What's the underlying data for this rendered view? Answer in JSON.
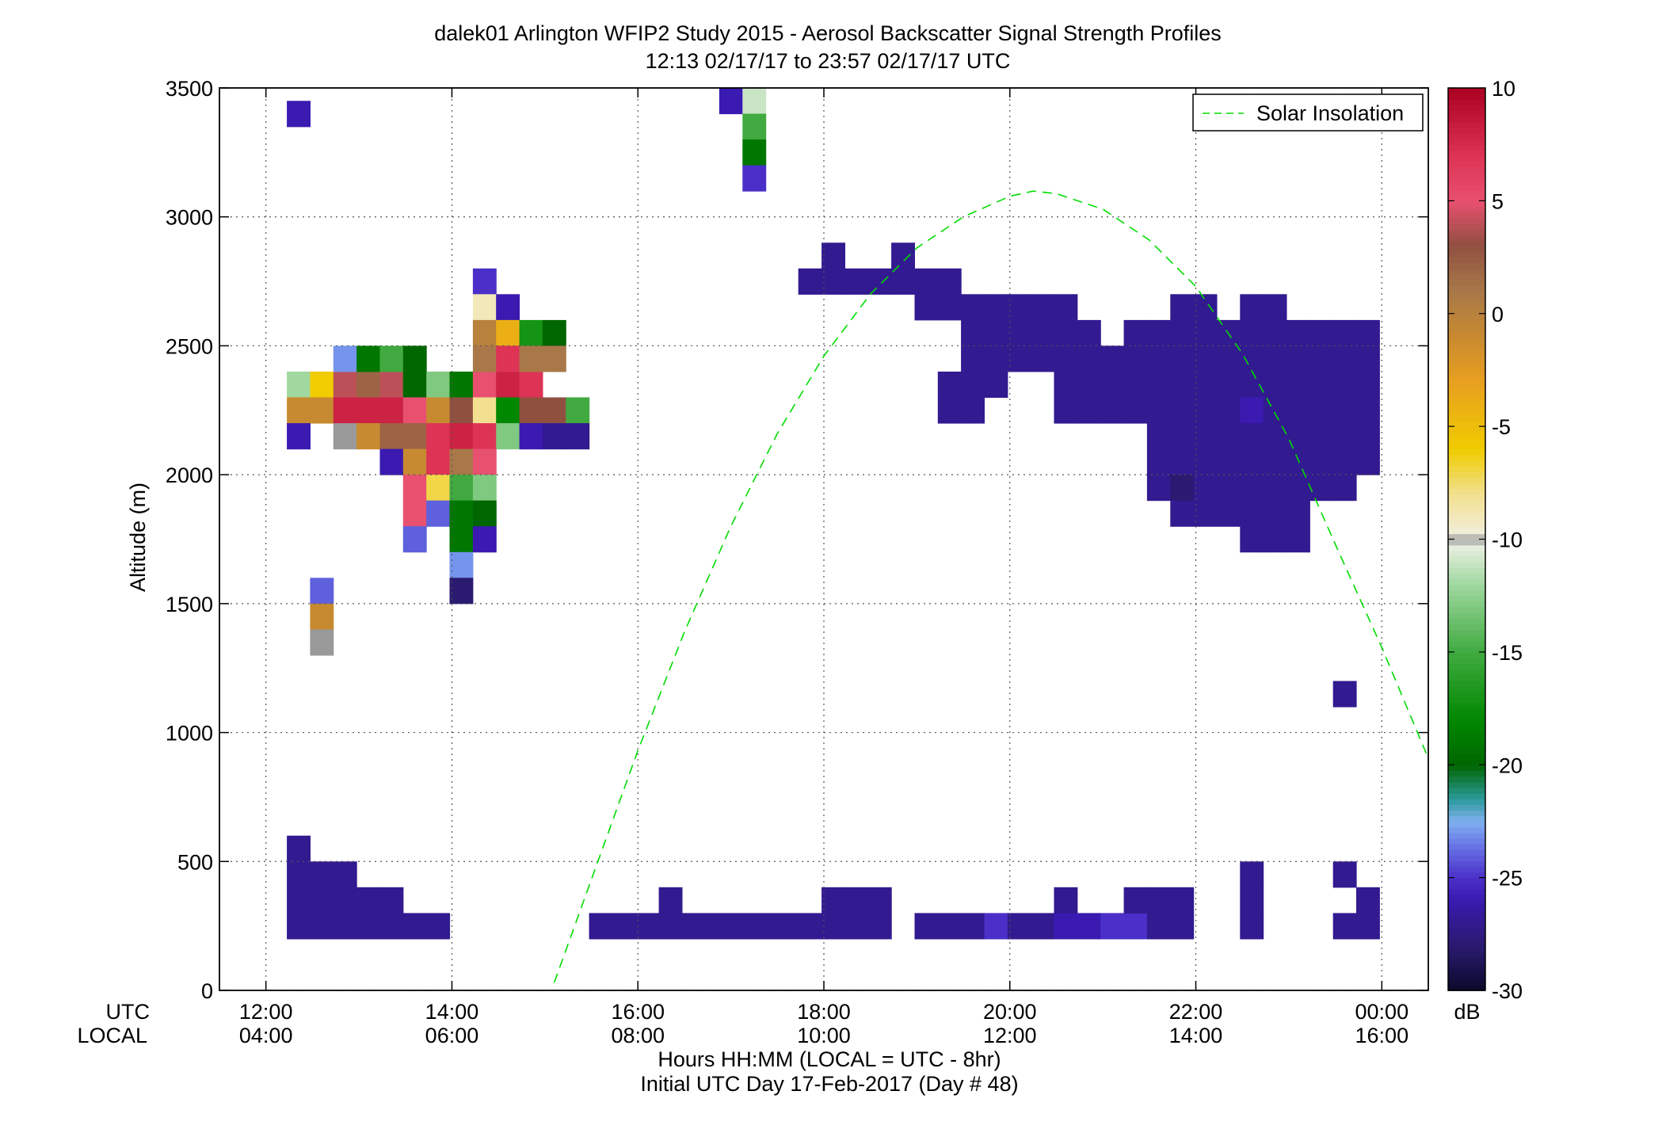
{
  "chart_data": {
    "type": "heatmap",
    "title": "dalek01 Arlington WFIP2 Study 2015 - Aerosol Backscatter Signal Strength Profiles",
    "subtitle": "12:13 02/17/17 to 23:57 02/17/17  UTC",
    "ylabel": "Altitude (m)",
    "xlabel": "Hours HH:MM  (LOCAL = UTC - 8hr)",
    "xlabel2": "Initial UTC Day 17-Feb-2017 (Day # 48)",
    "utc_label": "UTC",
    "local_label": "LOCAL",
    "xlim_hours": [
      11.5,
      24.5
    ],
    "ylim": [
      0,
      3500
    ],
    "x_ticks": [
      {
        "h": 12,
        "utc": "12:00",
        "local": "04:00"
      },
      {
        "h": 14,
        "utc": "14:00",
        "local": "06:00"
      },
      {
        "h": 16,
        "utc": "16:00",
        "local": "08:00"
      },
      {
        "h": 18,
        "utc": "18:00",
        "local": "10:00"
      },
      {
        "h": 20,
        "utc": "20:00",
        "local": "12:00"
      },
      {
        "h": 22,
        "utc": "22:00",
        "local": "14:00"
      },
      {
        "h": 24,
        "utc": "00:00",
        "local": "16:00"
      }
    ],
    "y_ticks": [
      {
        "v": 0,
        "label": "0"
      },
      {
        "v": 500,
        "label": "500"
      },
      {
        "v": 1000,
        "label": "1000"
      },
      {
        "v": 1500,
        "label": "1500"
      },
      {
        "v": 2000,
        "label": "2000"
      },
      {
        "v": 2500,
        "label": "2500"
      },
      {
        "v": 3000,
        "label": "3000"
      },
      {
        "v": 3500,
        "label": "3500"
      }
    ],
    "grid": true,
    "legend": {
      "label": "Solar Insolation",
      "placement": "top-right",
      "color": "#00dd00"
    },
    "colorbar": {
      "unit": "dB",
      "range": [
        -30,
        10
      ],
      "ticks": [
        {
          "v": 10,
          "label": "10"
        },
        {
          "v": 5,
          "label": "5"
        },
        {
          "v": 0,
          "label": "0"
        },
        {
          "v": -5,
          "label": "-5"
        },
        {
          "v": -10,
          "label": "-10"
        },
        {
          "v": -15,
          "label": "-15"
        },
        {
          "v": -20,
          "label": "-20"
        },
        {
          "v": -25,
          "label": "-25"
        },
        {
          "v": -30,
          "label": "-30"
        }
      ],
      "stops": [
        [
          -30,
          "#0a0a2a"
        ],
        [
          -28,
          "#2a1a70"
        ],
        [
          -26,
          "#3a1ab0"
        ],
        [
          -25,
          "#4a30c8"
        ],
        [
          -23.5,
          "#6a78e8"
        ],
        [
          -22.5,
          "#80b0f0"
        ],
        [
          -21.5,
          "#2a9a9a"
        ],
        [
          -20,
          "#006600"
        ],
        [
          -18,
          "#008800"
        ],
        [
          -15,
          "#40aa40"
        ],
        [
          -12,
          "#a0d8a0"
        ],
        [
          -10.3,
          "#e8eee0"
        ],
        [
          -10,
          "#999999"
        ],
        [
          -9.7,
          "#f2eed8"
        ],
        [
          -8,
          "#f2e090"
        ],
        [
          -6,
          "#f0cc00"
        ],
        [
          -3,
          "#e8a020"
        ],
        [
          -1,
          "#c88a30"
        ],
        [
          1,
          "#a87848"
        ],
        [
          3,
          "#905040"
        ],
        [
          5,
          "#e85070"
        ],
        [
          7,
          "#dd3355"
        ],
        [
          10,
          "#aa0022"
        ]
      ]
    },
    "solar_curve": {
      "start_hour": 15.1,
      "end_hour": 24.5,
      "peak_hour": 20.25,
      "peak_altitude": 3100,
      "points_hours": [
        15.1,
        15.5,
        16,
        16.5,
        17,
        17.5,
        18,
        18.5,
        19,
        19.5,
        20,
        20.25,
        20.5,
        21,
        21.5,
        22,
        22.5,
        23,
        23.5,
        24,
        24.5
      ],
      "points_altitude": [
        30,
        430,
        930,
        1390,
        1800,
        2160,
        2460,
        2700,
        2880,
        3000,
        3080,
        3100,
        3090,
        3030,
        2910,
        2730,
        2470,
        2140,
        1730,
        1330,
        900
      ]
    },
    "cells": [
      [
        12.35,
        3400,
        -26
      ],
      [
        17.0,
        3450,
        -26
      ],
      [
        17.25,
        3450,
        -11
      ],
      [
        17.25,
        3350,
        -15
      ],
      [
        17.25,
        3250,
        -19
      ],
      [
        17.25,
        3150,
        -25
      ],
      [
        12.35,
        2350,
        -12
      ],
      [
        12.6,
        2350,
        -6
      ],
      [
        12.85,
        2350,
        4
      ],
      [
        13.1,
        2350,
        2
      ],
      [
        13.35,
        2350,
        4
      ],
      [
        13.6,
        2350,
        -20
      ],
      [
        13.85,
        2350,
        -13
      ],
      [
        14.1,
        2350,
        -19
      ],
      [
        14.35,
        2350,
        5
      ],
      [
        14.6,
        2350,
        8
      ],
      [
        14.85,
        2350,
        7
      ],
      [
        12.85,
        2450,
        -23
      ],
      [
        13.1,
        2450,
        -19
      ],
      [
        13.35,
        2450,
        -15
      ],
      [
        13.6,
        2450,
        -20
      ],
      [
        14.35,
        2750,
        -25
      ],
      [
        14.35,
        2650,
        -9
      ],
      [
        14.6,
        2650,
        -26
      ],
      [
        14.35,
        2550,
        0
      ],
      [
        14.6,
        2550,
        -4
      ],
      [
        14.85,
        2550,
        -17
      ],
      [
        15.1,
        2550,
        -20
      ],
      [
        14.35,
        2450,
        1
      ],
      [
        14.6,
        2450,
        7
      ],
      [
        14.85,
        2450,
        1
      ],
      [
        15.1,
        2450,
        1
      ],
      [
        12.35,
        2250,
        -1
      ],
      [
        12.6,
        2250,
        -1
      ],
      [
        12.85,
        2250,
        8
      ],
      [
        13.1,
        2250,
        8
      ],
      [
        13.35,
        2250,
        8
      ],
      [
        13.6,
        2250,
        5
      ],
      [
        13.85,
        2250,
        -1
      ],
      [
        14.1,
        2250,
        3
      ],
      [
        14.35,
        2250,
        -8
      ],
      [
        14.6,
        2250,
        -18
      ],
      [
        14.85,
        2250,
        3
      ],
      [
        15.1,
        2250,
        3
      ],
      [
        15.35,
        2250,
        -15
      ],
      [
        12.35,
        2150,
        -26
      ],
      [
        12.85,
        2150,
        -10
      ],
      [
        13.1,
        2150,
        -1
      ],
      [
        13.35,
        2150,
        2
      ],
      [
        13.6,
        2150,
        2
      ],
      [
        13.85,
        2150,
        7
      ],
      [
        14.1,
        2150,
        8
      ],
      [
        14.35,
        2150,
        7
      ],
      [
        14.6,
        2150,
        -13
      ],
      [
        14.85,
        2150,
        -26
      ],
      [
        15.1,
        2150,
        -27
      ],
      [
        15.35,
        2150,
        -27
      ],
      [
        13.35,
        2050,
        -26
      ],
      [
        13.6,
        2050,
        -1
      ],
      [
        13.85,
        2050,
        7
      ],
      [
        14.1,
        2050,
        1
      ],
      [
        14.35,
        2050,
        5
      ],
      [
        13.6,
        1950,
        5
      ],
      [
        13.85,
        1950,
        -7
      ],
      [
        14.1,
        1950,
        -15
      ],
      [
        14.35,
        1950,
        -13
      ],
      [
        13.6,
        1850,
        5
      ],
      [
        13.85,
        1850,
        -24
      ],
      [
        14.1,
        1850,
        -19
      ],
      [
        14.35,
        1850,
        -20
      ],
      [
        13.6,
        1750,
        -24
      ],
      [
        14.1,
        1750,
        -19
      ],
      [
        14.35,
        1750,
        -26
      ],
      [
        14.1,
        1650,
        -23
      ],
      [
        14.1,
        1550,
        -28
      ],
      [
        12.6,
        1550,
        -24
      ],
      [
        12.6,
        1450,
        -1
      ],
      [
        12.6,
        1350,
        -10
      ],
      [
        18.1,
        2850,
        -27
      ],
      [
        18.85,
        2850,
        -27
      ],
      [
        17.85,
        2750,
        -27
      ],
      [
        18.1,
        2750,
        -27
      ],
      [
        18.35,
        2750,
        -27
      ],
      [
        18.6,
        2750,
        -27
      ],
      [
        18.85,
        2750,
        -27
      ],
      [
        19.1,
        2750,
        -27
      ],
      [
        19.35,
        2750,
        -27
      ],
      [
        19.1,
        2650,
        -27
      ],
      [
        19.35,
        2650,
        -27
      ],
      [
        19.6,
        2650,
        -27
      ],
      [
        19.85,
        2650,
        -27
      ],
      [
        20.1,
        2650,
        -27
      ],
      [
        20.35,
        2650,
        -27
      ],
      [
        20.6,
        2650,
        -27
      ],
      [
        19.6,
        2550,
        -27
      ],
      [
        19.85,
        2550,
        -27
      ],
      [
        20.1,
        2550,
        -27
      ],
      [
        20.35,
        2550,
        -27
      ],
      [
        20.6,
        2550,
        -27
      ],
      [
        20.85,
        2550,
        -27
      ],
      [
        19.6,
        2450,
        -27
      ],
      [
        19.85,
        2450,
        -27
      ],
      [
        20.1,
        2450,
        -27
      ],
      [
        20.35,
        2450,
        -27
      ],
      [
        20.6,
        2450,
        -27
      ],
      [
        20.85,
        2450,
        -27
      ],
      [
        21.1,
        2450,
        -27
      ],
      [
        19.35,
        2350,
        -27
      ],
      [
        19.6,
        2350,
        -27
      ],
      [
        19.85,
        2350,
        -27
      ],
      [
        20.6,
        2350,
        -27
      ],
      [
        20.85,
        2350,
        -27
      ],
      [
        21.1,
        2350,
        -27
      ],
      [
        19.35,
        2250,
        -27
      ],
      [
        19.6,
        2250,
        -27
      ],
      [
        20.6,
        2250,
        -27
      ],
      [
        20.85,
        2250,
        -27
      ],
      [
        21.1,
        2250,
        -27
      ],
      [
        21.85,
        2650,
        -27
      ],
      [
        22.1,
        2650,
        -27
      ],
      [
        22.6,
        2650,
        -27
      ],
      [
        22.85,
        2650,
        -27
      ],
      [
        21.35,
        2550,
        -27
      ],
      [
        21.6,
        2550,
        -27
      ],
      [
        21.85,
        2550,
        -27
      ],
      [
        22.1,
        2550,
        -27
      ],
      [
        22.35,
        2550,
        -27
      ],
      [
        22.6,
        2550,
        -27
      ],
      [
        22.85,
        2550,
        -27
      ],
      [
        23.1,
        2550,
        -27
      ],
      [
        23.35,
        2550,
        -27
      ],
      [
        23.6,
        2550,
        -27
      ],
      [
        23.85,
        2550,
        -27
      ],
      [
        21.35,
        2450,
        -27
      ],
      [
        21.6,
        2450,
        -27
      ],
      [
        21.85,
        2450,
        -27
      ],
      [
        22.1,
        2450,
        -27
      ],
      [
        22.35,
        2450,
        -27
      ],
      [
        22.6,
        2450,
        -27
      ],
      [
        22.85,
        2450,
        -27
      ],
      [
        23.1,
        2450,
        -27
      ],
      [
        23.35,
        2450,
        -27
      ],
      [
        23.6,
        2450,
        -27
      ],
      [
        23.85,
        2450,
        -27
      ],
      [
        21.35,
        2350,
        -27
      ],
      [
        21.6,
        2350,
        -27
      ],
      [
        21.85,
        2350,
        -27
      ],
      [
        22.1,
        2350,
        -27
      ],
      [
        22.35,
        2350,
        -27
      ],
      [
        22.6,
        2350,
        -27
      ],
      [
        22.85,
        2350,
        -27
      ],
      [
        23.1,
        2350,
        -27
      ],
      [
        23.35,
        2350,
        -27
      ],
      [
        23.6,
        2350,
        -27
      ],
      [
        23.85,
        2350,
        -27
      ],
      [
        21.35,
        2250,
        -27
      ],
      [
        21.6,
        2250,
        -27
      ],
      [
        21.85,
        2250,
        -27
      ],
      [
        22.1,
        2250,
        -27
      ],
      [
        22.35,
        2250,
        -27
      ],
      [
        22.6,
        2250,
        -26
      ],
      [
        22.85,
        2250,
        -27
      ],
      [
        23.1,
        2250,
        -27
      ],
      [
        23.35,
        2250,
        -27
      ],
      [
        23.6,
        2250,
        -27
      ],
      [
        23.85,
        2250,
        -27
      ],
      [
        21.6,
        2150,
        -27
      ],
      [
        21.85,
        2150,
        -27
      ],
      [
        22.1,
        2150,
        -27
      ],
      [
        22.35,
        2150,
        -27
      ],
      [
        22.6,
        2150,
        -27
      ],
      [
        22.85,
        2150,
        -27
      ],
      [
        23.1,
        2150,
        -27
      ],
      [
        23.35,
        2150,
        -27
      ],
      [
        23.6,
        2150,
        -27
      ],
      [
        23.85,
        2150,
        -27
      ],
      [
        21.6,
        2050,
        -27
      ],
      [
        21.85,
        2050,
        -27
      ],
      [
        22.1,
        2050,
        -27
      ],
      [
        22.35,
        2050,
        -27
      ],
      [
        22.6,
        2050,
        -27
      ],
      [
        22.85,
        2050,
        -27
      ],
      [
        23.1,
        2050,
        -27
      ],
      [
        23.35,
        2050,
        -27
      ],
      [
        23.6,
        2050,
        -27
      ],
      [
        23.85,
        2050,
        -27
      ],
      [
        21.6,
        1950,
        -27
      ],
      [
        21.85,
        1950,
        -28
      ],
      [
        22.1,
        1950,
        -27
      ],
      [
        22.35,
        1950,
        -27
      ],
      [
        22.6,
        1950,
        -27
      ],
      [
        22.85,
        1950,
        -27
      ],
      [
        23.1,
        1950,
        -27
      ],
      [
        23.35,
        1950,
        -27
      ],
      [
        23.6,
        1950,
        -27
      ],
      [
        21.85,
        1850,
        -27
      ],
      [
        22.1,
        1850,
        -27
      ],
      [
        22.35,
        1850,
        -27
      ],
      [
        22.6,
        1850,
        -27
      ],
      [
        22.85,
        1850,
        -27
      ],
      [
        23.1,
        1850,
        -27
      ],
      [
        22.6,
        1750,
        -27
      ],
      [
        22.85,
        1750,
        -27
      ],
      [
        23.1,
        1750,
        -27
      ],
      [
        23.6,
        1150,
        -27
      ],
      [
        12.35,
        550,
        -27
      ],
      [
        12.35,
        450,
        -27
      ],
      [
        12.6,
        450,
        -27
      ],
      [
        12.85,
        450,
        -27
      ],
      [
        12.35,
        350,
        -27
      ],
      [
        12.6,
        350,
        -27
      ],
      [
        12.85,
        350,
        -27
      ],
      [
        13.1,
        350,
        -27
      ],
      [
        13.35,
        350,
        -27
      ],
      [
        12.35,
        250,
        -27
      ],
      [
        12.6,
        250,
        -27
      ],
      [
        12.85,
        250,
        -27
      ],
      [
        13.1,
        250,
        -27
      ],
      [
        13.35,
        250,
        -27
      ],
      [
        13.6,
        250,
        -27
      ],
      [
        13.85,
        250,
        -27
      ],
      [
        16.35,
        350,
        -27
      ],
      [
        15.6,
        250,
        -27
      ],
      [
        15.85,
        250,
        -27
      ],
      [
        16.1,
        250,
        -27
      ],
      [
        16.35,
        250,
        -27
      ],
      [
        16.6,
        250,
        -27
      ],
      [
        18.1,
        350,
        -27
      ],
      [
        18.35,
        350,
        -27
      ],
      [
        18.6,
        350,
        -27
      ],
      [
        16.85,
        250,
        -27
      ],
      [
        17.1,
        250,
        -27
      ],
      [
        17.35,
        250,
        -27
      ],
      [
        17.6,
        250,
        -27
      ],
      [
        17.85,
        250,
        -27
      ],
      [
        18.1,
        250,
        -27
      ],
      [
        18.35,
        250,
        -27
      ],
      [
        18.6,
        250,
        -27
      ],
      [
        19.1,
        250,
        -27
      ],
      [
        19.35,
        250,
        -27
      ],
      [
        19.6,
        250,
        -27
      ],
      [
        19.85,
        250,
        -25
      ],
      [
        20.1,
        250,
        -27
      ],
      [
        20.35,
        250,
        -27
      ],
      [
        20.6,
        250,
        -26
      ],
      [
        20.85,
        250,
        -26
      ],
      [
        21.1,
        250,
        -25
      ],
      [
        21.35,
        250,
        -25
      ],
      [
        21.6,
        250,
        -27
      ],
      [
        21.85,
        250,
        -27
      ],
      [
        20.6,
        350,
        -27
      ],
      [
        21.35,
        350,
        -27
      ],
      [
        21.6,
        350,
        -27
      ],
      [
        21.85,
        350,
        -27
      ],
      [
        22.6,
        450,
        -27
      ],
      [
        22.6,
        350,
        -27
      ],
      [
        22.6,
        250,
        -27
      ],
      [
        23.6,
        450,
        -27
      ],
      [
        23.85,
        350,
        -27
      ],
      [
        23.6,
        250,
        -27
      ],
      [
        23.85,
        250,
        -27
      ]
    ]
  }
}
